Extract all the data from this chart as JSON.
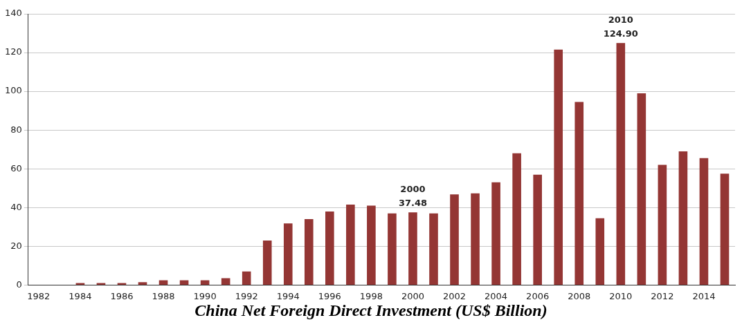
{
  "chart_data": {
    "type": "bar",
    "title": "China Net Foreign Direct Investment (US$ Billion)",
    "categories": [
      "1982",
      null,
      "1984",
      null,
      "1986",
      null,
      "1988",
      null,
      "1990",
      null,
      "1992",
      null,
      "1994",
      null,
      "1996",
      null,
      "1998",
      null,
      "2000",
      null,
      "2002",
      null,
      "2004",
      null,
      "2006",
      null,
      "2008",
      null,
      "2010",
      null,
      "2012",
      null,
      "2014",
      null
    ],
    "values": [
      0,
      0,
      1,
      1,
      1,
      1.5,
      2.5,
      2.5,
      2.5,
      3.5,
      7,
      23,
      31.8,
      34,
      38,
      41.5,
      41,
      37,
      37.48,
      37,
      46.8,
      47.3,
      53,
      68,
      57,
      121.5,
      94.5,
      34.5,
      124.9,
      99,
      62,
      69,
      65.5,
      57.5
    ],
    "color": "#943634",
    "ylim": [
      0,
      140
    ],
    "yticks": [
      0,
      20,
      40,
      60,
      80,
      100,
      120,
      140
    ],
    "grid": "y",
    "legend": false,
    "annotations": [
      {
        "text": "2000\n37.48",
        "x": "2000",
        "y": 37.48
      },
      {
        "text": "2010\n124.90",
        "x": "2010",
        "y": 124.9
      }
    ]
  }
}
